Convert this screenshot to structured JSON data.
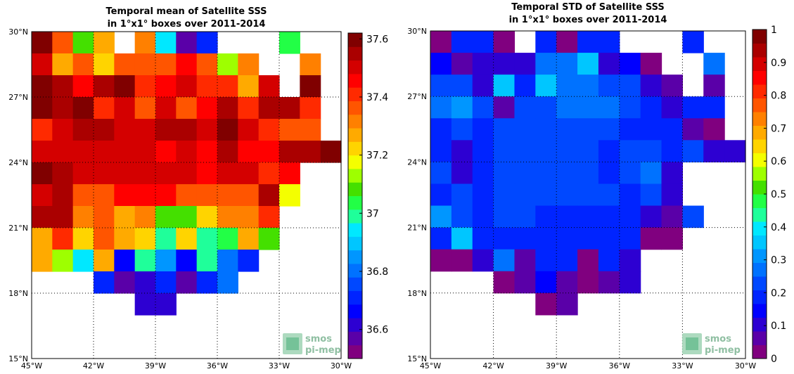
{
  "logo": {
    "line1": "smos",
    "line2": "pi-mep"
  },
  "palette": {
    "mean": [
      "#80007f",
      "#5a00a8",
      "#2d00d2",
      "#0000ff",
      "#0024ff",
      "#0048ff",
      "#0072ff",
      "#0096ff",
      "#00c6ff",
      "#00e8ff",
      "#1fff9a",
      "#22ff46",
      "#44e000",
      "#9eff00",
      "#f4ff00",
      "#ffd400",
      "#ffaa00",
      "#ff8000",
      "#ff5500",
      "#ff2a00",
      "#ff0000",
      "#d40000",
      "#aa0000",
      "#800000"
    ],
    "std": [
      "#80007f",
      "#5a00a8",
      "#2d00d2",
      "#0000ff",
      "#0024ff",
      "#0048ff",
      "#0072ff",
      "#0096ff",
      "#00c6ff",
      "#00e8ff",
      "#1fff9a",
      "#22ff46",
      "#44e000",
      "#9eff00",
      "#f4ff00",
      "#ffd400",
      "#ffaa00",
      "#ff8000",
      "#ff5500",
      "#ff2a00",
      "#ff0000",
      "#d40000",
      "#aa0000",
      "#800000"
    ]
  },
  "chart_data": [
    {
      "type": "heatmap",
      "title": "Temporal mean of Satellite SSS",
      "subtitle": "in 1°x1° boxes over 2011-2014",
      "x_ticks": [
        "45°W",
        "42°W",
        "39°W",
        "36°W",
        "33°W",
        "30°W"
      ],
      "y_ticks": [
        "15°N",
        "18°N",
        "21°N",
        "24°N",
        "27°N",
        "30°N"
      ],
      "xlim": [
        -45,
        -30
      ],
      "ylim": [
        15,
        30
      ],
      "grid": true,
      "colorbar": {
        "min": 36.5,
        "max": 37.62,
        "ticks": [
          "37.6",
          "37.4",
          "37.2",
          "37",
          "36.8",
          "36.6"
        ],
        "tick_values": [
          37.6,
          37.4,
          37.2,
          37.0,
          36.8,
          36.6
        ]
      },
      "rows_from_north": [
        [
          37.62,
          37.35,
          37.1,
          37.25,
          null,
          37.32,
          36.95,
          36.55,
          36.72,
          null,
          null,
          null,
          37.05,
          null,
          null
        ],
        [
          37.52,
          37.25,
          37.35,
          37.2,
          37.38,
          37.38,
          37.35,
          37.45,
          37.38,
          37.15,
          37.33,
          null,
          null,
          37.32,
          null
        ],
        [
          37.62,
          37.53,
          37.45,
          37.55,
          37.62,
          37.42,
          37.45,
          37.5,
          37.42,
          37.4,
          37.28,
          37.5,
          null,
          37.62,
          null
        ],
        [
          37.62,
          37.57,
          37.62,
          37.42,
          37.52,
          37.38,
          37.5,
          37.38,
          37.45,
          37.55,
          37.42,
          37.55,
          37.55,
          37.42,
          null
        ],
        [
          37.42,
          37.5,
          37.55,
          37.55,
          37.5,
          37.5,
          37.55,
          37.55,
          37.5,
          37.62,
          37.5,
          37.42,
          37.38,
          37.38,
          null
        ],
        [
          37.5,
          37.5,
          37.5,
          37.5,
          37.5,
          37.5,
          37.45,
          37.5,
          37.45,
          37.55,
          37.45,
          37.45,
          37.55,
          37.55,
          37.62
        ],
        [
          37.62,
          37.55,
          37.5,
          37.5,
          37.5,
          37.5,
          37.5,
          37.5,
          37.45,
          37.5,
          37.5,
          37.4,
          37.45,
          null,
          null
        ],
        [
          37.5,
          37.55,
          37.38,
          37.38,
          37.45,
          37.45,
          37.45,
          37.38,
          37.38,
          37.38,
          37.38,
          37.55,
          37.18,
          null,
          null
        ],
        [
          37.55,
          37.55,
          37.32,
          37.38,
          37.25,
          37.32,
          37.1,
          37.1,
          37.2,
          37.32,
          37.32,
          37.42,
          null,
          null,
          null
        ],
        [
          37.25,
          37.42,
          37.2,
          37.35,
          37.25,
          37.2,
          37.0,
          37.2,
          37.0,
          37.05,
          37.25,
          37.1,
          null,
          null,
          null
        ],
        [
          37.25,
          37.15,
          36.95,
          37.25,
          36.65,
          37.0,
          36.85,
          36.65,
          37.0,
          36.82,
          36.7,
          null,
          null,
          null,
          null
        ],
        [
          null,
          null,
          null,
          36.72,
          36.55,
          36.6,
          36.7,
          36.55,
          36.72,
          36.82,
          null,
          null,
          null,
          null,
          null
        ],
        [
          null,
          null,
          null,
          null,
          null,
          36.62,
          36.62,
          null,
          null,
          null,
          null,
          null,
          null,
          null,
          null
        ]
      ]
    },
    {
      "type": "heatmap",
      "title": "Temporal STD of Satellite SSS",
      "subtitle": "in 1°x1° boxes over 2011-2014",
      "x_ticks": [
        "45°W",
        "42°W",
        "39°W",
        "36°W",
        "33°W",
        "30°W"
      ],
      "y_ticks": [
        "15°N",
        "18°N",
        "21°N",
        "24°N",
        "27°N",
        "30°N"
      ],
      "xlim": [
        -45,
        -30
      ],
      "ylim": [
        15,
        30
      ],
      "grid": true,
      "colorbar": {
        "min": 0,
        "max": 1,
        "ticks": [
          "1",
          "0.9",
          "0.8",
          "0.7",
          "0.6",
          "0.5",
          "0.4",
          "0.3",
          "0.2",
          "0.1",
          "0"
        ],
        "tick_values": [
          1,
          0.9,
          0.8,
          0.7,
          0.6,
          0.5,
          0.4,
          0.3,
          0.2,
          0.1,
          0
        ]
      },
      "rows_from_north": [
        [
          0.02,
          0.17,
          0.17,
          0.02,
          null,
          0.17,
          0.02,
          0.17,
          0.17,
          null,
          null,
          null,
          0.17,
          null,
          null
        ],
        [
          0.13,
          0.06,
          0.1,
          0.1,
          0.1,
          0.29,
          0.29,
          0.37,
          0.1,
          0.13,
          0.02,
          null,
          null,
          0.25,
          null
        ],
        [
          0.21,
          0.21,
          0.1,
          0.37,
          0.17,
          0.37,
          0.25,
          0.25,
          0.21,
          0.21,
          0.1,
          0.06,
          null,
          0.06,
          null
        ],
        [
          0.25,
          0.33,
          0.21,
          0.06,
          0.21,
          0.21,
          0.29,
          0.29,
          0.29,
          0.21,
          0.17,
          0.1,
          0.17,
          0.17,
          null
        ],
        [
          0.17,
          0.21,
          0.17,
          0.21,
          0.21,
          0.21,
          0.21,
          0.21,
          0.21,
          0.17,
          0.17,
          0.17,
          0.06,
          0.02,
          null
        ],
        [
          0.17,
          0.1,
          0.17,
          0.21,
          0.21,
          0.21,
          0.21,
          0.21,
          0.17,
          0.21,
          0.21,
          0.17,
          0.21,
          0.1,
          0.1
        ],
        [
          0.21,
          0.1,
          0.17,
          0.21,
          0.21,
          0.21,
          0.21,
          0.21,
          0.17,
          0.21,
          0.29,
          0.1,
          null,
          null,
          null
        ],
        [
          0.17,
          0.21,
          0.17,
          0.21,
          0.21,
          0.21,
          0.21,
          0.21,
          0.21,
          0.17,
          0.21,
          0.1,
          null,
          null,
          null
        ],
        [
          0.33,
          0.21,
          0.17,
          0.21,
          0.21,
          0.17,
          0.17,
          0.17,
          0.17,
          0.17,
          0.1,
          0.06,
          0.21,
          null,
          null
        ],
        [
          0.17,
          0.37,
          0.17,
          0.17,
          0.17,
          0.17,
          0.17,
          0.17,
          0.17,
          0.17,
          0.02,
          0.02,
          null,
          null,
          null
        ],
        [
          0.02,
          0.02,
          0.1,
          0.29,
          0.06,
          0.17,
          0.17,
          0.02,
          0.17,
          0.1,
          null,
          null,
          null,
          null,
          null
        ],
        [
          null,
          null,
          null,
          0.02,
          0.06,
          0.13,
          0.06,
          0.02,
          0.06,
          0.1,
          null,
          null,
          null,
          null,
          null
        ],
        [
          null,
          null,
          null,
          null,
          null,
          0.02,
          0.06,
          null,
          null,
          null,
          null,
          null,
          null,
          null,
          null
        ]
      ]
    }
  ]
}
